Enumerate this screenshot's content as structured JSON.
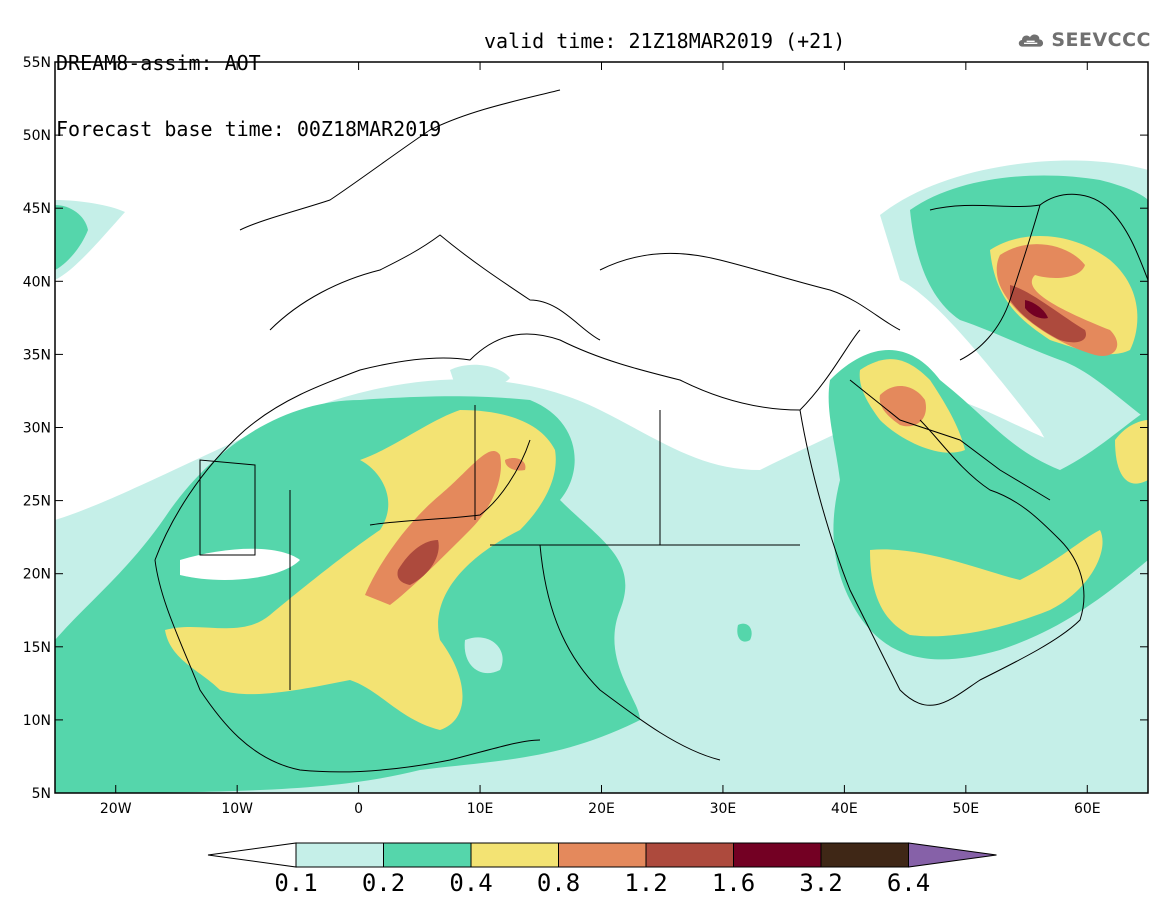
{
  "header": {
    "title_line1": "DREAM8-assim: AOT",
    "title_line2": "Forecast base time: 00Z18MAR2019",
    "valid_time": "valid time: 21Z18MAR2019 (+21)"
  },
  "logo": {
    "text": "SEEVCCC",
    "icon": "cloud-logo-icon",
    "color": "#707070"
  },
  "map": {
    "lon_range": [
      -25,
      65
    ],
    "lat_range": [
      5,
      55
    ],
    "x_ticks": [
      "20W",
      "10W",
      "0",
      "10E",
      "20E",
      "30E",
      "40E",
      "50E",
      "60E"
    ],
    "y_ticks": [
      "5N",
      "10N",
      "15N",
      "20N",
      "25N",
      "30N",
      "35N",
      "40N",
      "45N",
      "50N",
      "55N"
    ]
  },
  "colorbar": {
    "labels": [
      "0.1",
      "0.2",
      "0.4",
      "0.8",
      "1.2",
      "1.6",
      "3.2",
      "6.4"
    ],
    "colors": [
      "#ffffff",
      "#c5efe8",
      "#55d6ab",
      "#f3e373",
      "#e4895c",
      "#ad4a3d",
      "#730023",
      "#3f2716",
      "#8661a8"
    ]
  }
}
